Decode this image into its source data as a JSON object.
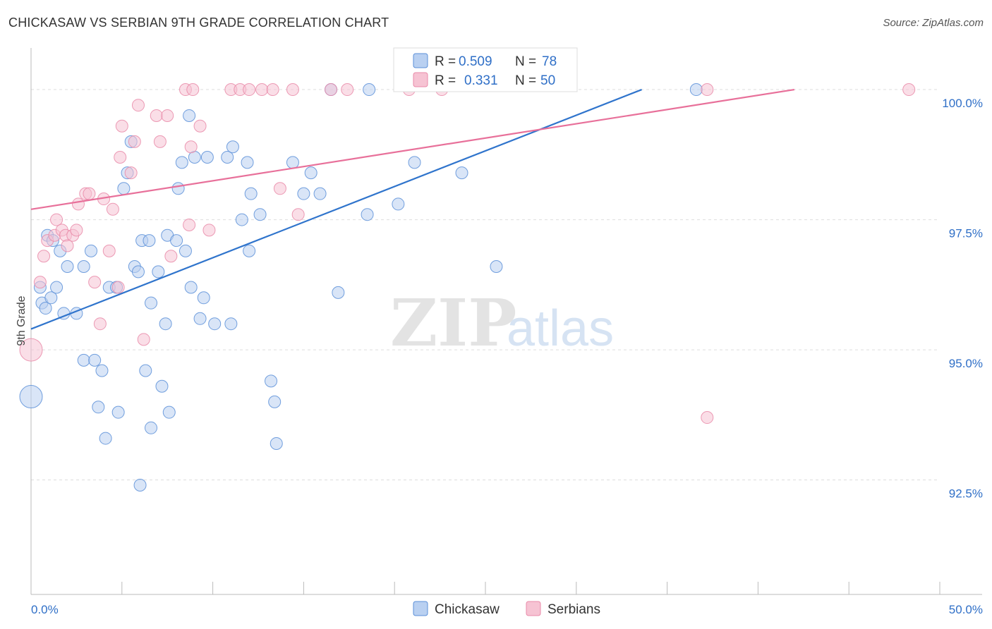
{
  "header": {
    "title": "CHICKASAW VS SERBIAN 9TH GRADE CORRELATION CHART",
    "source": "Source: ZipAtlas.com"
  },
  "watermark": {
    "zip": "ZIP",
    "atlas": "atlas"
  },
  "colors": {
    "blue": "#5b8fd8",
    "blue_fill": "#b9d0f1",
    "blue_line": "#2f74cc",
    "blue_text": "#2f6fc7",
    "pink": "#e98aa8",
    "pink_fill": "#f6c3d3",
    "pink_line": "#e8709a",
    "grid": "#dddddd",
    "axis": "#bbbbbb"
  },
  "legend_box": {
    "rows": [
      {
        "r_label": "R =",
        "r_value": "0.509",
        "n_label": "N =",
        "n_value": "78",
        "color": "blue"
      },
      {
        "r_label": "R =",
        "r_value": "0.331",
        "n_label": "N =",
        "n_value": "50",
        "color": "pink"
      }
    ]
  },
  "chart_data": {
    "type": "scatter",
    "title": "CHICKASAW VS SERBIAN 9TH GRADE CORRELATION CHART",
    "xlabel": "",
    "ylabel": "9th Grade",
    "xlim": [
      0,
      50
    ],
    "ylim": [
      90.3,
      100.8
    ],
    "x_tick_labels": [
      {
        "value": 0,
        "label": "0.0%"
      },
      {
        "value": 50,
        "label": "50.0%"
      }
    ],
    "y_tick_labels": [
      {
        "value": 100.0,
        "label": "100.0%"
      },
      {
        "value": 97.5,
        "label": "97.5%"
      },
      {
        "value": 95.0,
        "label": "95.0%"
      },
      {
        "value": 92.5,
        "label": "92.5%"
      }
    ],
    "legend": [
      "Chickasaw",
      "Serbians"
    ],
    "series": [
      {
        "name": "Chickasaw",
        "r": 0.509,
        "n": 78,
        "trend": {
          "x0": 0,
          "y0": 95.4,
          "x1": 33.6,
          "y1": 100.0
        },
        "points": [
          [
            0.5,
            96.2
          ],
          [
            0.6,
            95.9
          ],
          [
            0.8,
            95.8
          ],
          [
            0.9,
            97.2
          ],
          [
            1.1,
            96.0
          ],
          [
            1.2,
            97.1
          ],
          [
            1.4,
            96.2
          ],
          [
            1.6,
            96.9
          ],
          [
            1.8,
            95.7
          ],
          [
            2.0,
            96.6
          ],
          [
            2.5,
            95.7
          ],
          [
            2.9,
            96.6
          ],
          [
            3.3,
            96.9
          ],
          [
            2.9,
            94.8
          ],
          [
            3.5,
            94.8
          ],
          [
            3.7,
            93.9
          ],
          [
            3.9,
            94.6
          ],
          [
            4.1,
            93.3
          ],
          [
            4.3,
            96.2
          ],
          [
            4.7,
            96.2
          ],
          [
            4.8,
            93.8
          ],
          [
            5.1,
            98.1
          ],
          [
            5.3,
            98.4
          ],
          [
            5.5,
            99.0
          ],
          [
            5.7,
            96.6
          ],
          [
            5.9,
            96.5
          ],
          [
            6.0,
            92.4
          ],
          [
            6.1,
            97.1
          ],
          [
            6.3,
            94.6
          ],
          [
            6.5,
            97.1
          ],
          [
            6.6,
            95.9
          ],
          [
            6.6,
            93.5
          ],
          [
            7.0,
            96.5
          ],
          [
            7.2,
            94.3
          ],
          [
            7.4,
            95.5
          ],
          [
            7.5,
            97.2
          ],
          [
            7.6,
            93.8
          ],
          [
            8.0,
            97.1
          ],
          [
            8.1,
            98.1
          ],
          [
            8.3,
            98.6
          ],
          [
            8.5,
            96.9
          ],
          [
            8.7,
            99.5
          ],
          [
            8.8,
            96.2
          ],
          [
            9.0,
            98.7
          ],
          [
            9.3,
            95.6
          ],
          [
            9.5,
            96.0
          ],
          [
            9.7,
            98.7
          ],
          [
            10.1,
            95.5
          ],
          [
            10.8,
            98.7
          ],
          [
            11.0,
            95.5
          ],
          [
            11.1,
            98.9
          ],
          [
            11.6,
            97.5
          ],
          [
            11.9,
            98.6
          ],
          [
            12.0,
            96.9
          ],
          [
            12.1,
            98.0
          ],
          [
            12.6,
            97.6
          ],
          [
            13.2,
            94.4
          ],
          [
            13.4,
            94.0
          ],
          [
            13.5,
            93.2
          ],
          [
            14.4,
            98.6
          ],
          [
            15.0,
            98.0
          ],
          [
            15.4,
            98.4
          ],
          [
            15.9,
            98.0
          ],
          [
            16.5,
            100.0
          ],
          [
            16.9,
            96.1
          ],
          [
            18.5,
            97.6
          ],
          [
            18.6,
            100.0
          ],
          [
            20.2,
            97.8
          ],
          [
            21.1,
            98.6
          ],
          [
            23.7,
            98.4
          ],
          [
            25.6,
            96.6
          ],
          [
            36.6,
            100.0
          ]
        ]
      },
      {
        "name": "Serbians",
        "r": 0.331,
        "n": 50,
        "trend": {
          "x0": 0,
          "y0": 97.7,
          "x1": 42.0,
          "y1": 100.0
        },
        "points": [
          [
            0.5,
            96.3
          ],
          [
            0.7,
            96.8
          ],
          [
            0.9,
            97.1
          ],
          [
            1.3,
            97.2
          ],
          [
            1.4,
            97.5
          ],
          [
            1.7,
            97.3
          ],
          [
            1.9,
            97.2
          ],
          [
            2.0,
            97.0
          ],
          [
            2.3,
            97.2
          ],
          [
            2.5,
            97.3
          ],
          [
            2.6,
            97.8
          ],
          [
            3.0,
            98.0
          ],
          [
            3.2,
            98.0
          ],
          [
            3.5,
            96.3
          ],
          [
            3.8,
            95.5
          ],
          [
            4.0,
            97.9
          ],
          [
            4.3,
            96.9
          ],
          [
            4.5,
            97.7
          ],
          [
            4.8,
            96.2
          ],
          [
            4.9,
            98.7
          ],
          [
            5.0,
            99.3
          ],
          [
            5.5,
            98.4
          ],
          [
            5.7,
            99.0
          ],
          [
            5.9,
            99.7
          ],
          [
            6.2,
            95.2
          ],
          [
            6.9,
            99.5
          ],
          [
            7.1,
            99.0
          ],
          [
            7.5,
            99.5
          ],
          [
            7.7,
            96.8
          ],
          [
            8.5,
            100.0
          ],
          [
            8.7,
            97.4
          ],
          [
            8.8,
            98.9
          ],
          [
            8.9,
            100.0
          ],
          [
            9.3,
            99.3
          ],
          [
            9.8,
            97.3
          ],
          [
            11.0,
            100.0
          ],
          [
            11.5,
            100.0
          ],
          [
            12.0,
            100.0
          ],
          [
            12.7,
            100.0
          ],
          [
            13.3,
            100.0
          ],
          [
            13.7,
            98.1
          ],
          [
            14.4,
            100.0
          ],
          [
            14.7,
            97.6
          ],
          [
            16.5,
            100.0
          ],
          [
            17.4,
            100.0
          ],
          [
            20.8,
            100.0
          ],
          [
            22.6,
            100.0
          ],
          [
            37.2,
            100.0
          ],
          [
            37.2,
            93.7
          ],
          [
            48.3,
            100.0
          ]
        ]
      }
    ],
    "large_points": [
      {
        "series": "Chickasaw",
        "x": 0.0,
        "y": 94.1
      },
      {
        "series": "Serbians",
        "x": 0.0,
        "y": 95.0
      }
    ]
  }
}
